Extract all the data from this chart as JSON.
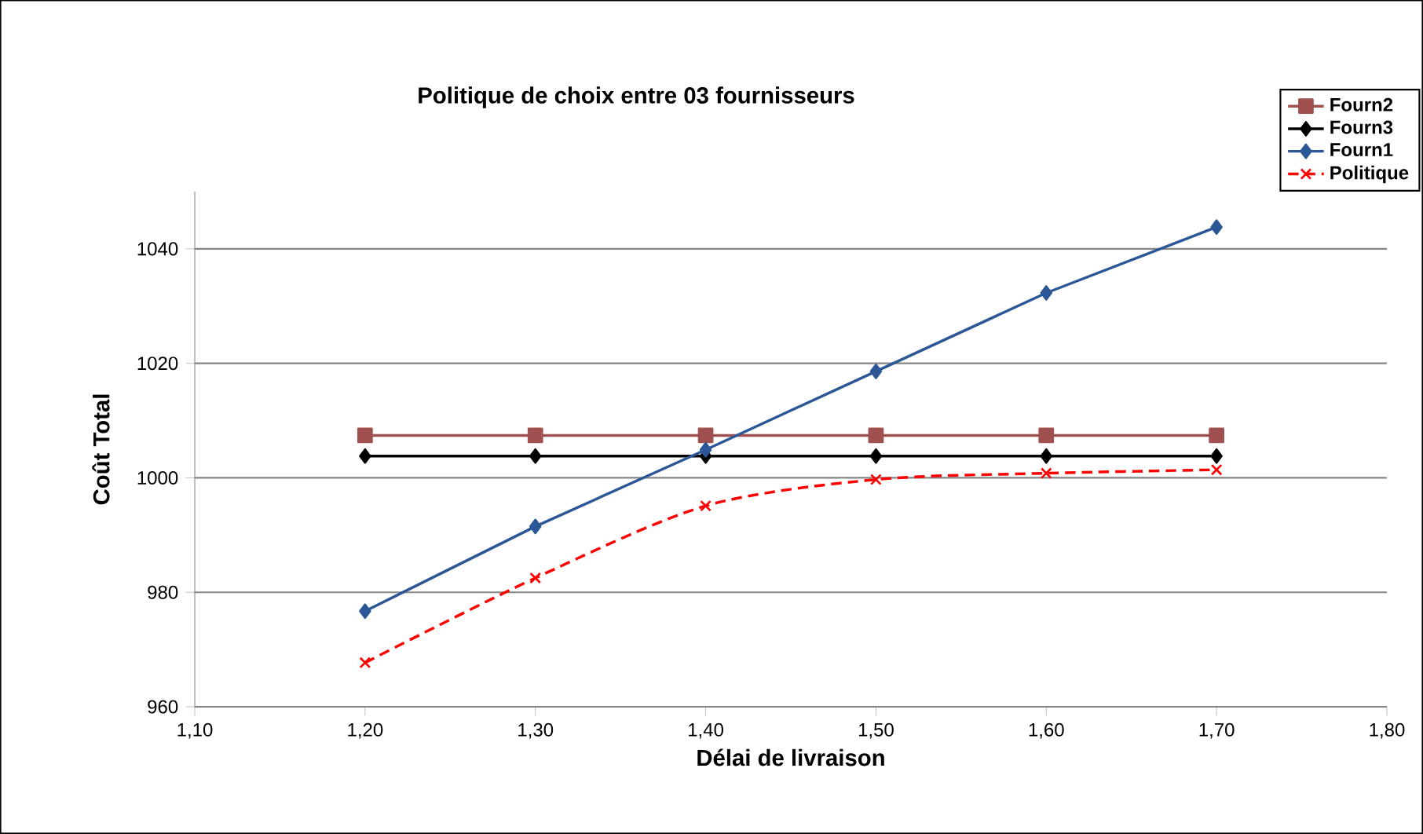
{
  "chart_data": {
    "type": "line",
    "title": "Politique de choix entre  03 fournisseurs",
    "xlabel": "Délai de livraison",
    "ylabel": "Coût Total",
    "x": [
      1.2,
      1.3,
      1.4,
      1.5,
      1.6,
      1.7
    ],
    "series": [
      {
        "name": "Fourn2",
        "color": "#a0504f",
        "marker": "square",
        "line_style": "solid",
        "values": [
          1007.4,
          1007.4,
          1007.4,
          1007.4,
          1007.4,
          1007.4
        ]
      },
      {
        "name": "Fourn3",
        "color": "#000000",
        "marker": "diamond",
        "line_style": "solid",
        "values": [
          1003.8,
          1003.8,
          1003.8,
          1003.8,
          1003.8,
          1003.8
        ]
      },
      {
        "name": "Fourn1",
        "color": "#2c5797",
        "marker": "diamond",
        "line_style": "solid",
        "values": [
          976.7,
          991.5,
          1004.9,
          1018.6,
          1032.3,
          1043.8
        ]
      },
      {
        "name": "Politique",
        "color": "#ff0000",
        "marker": "cross",
        "line_style": "dashed",
        "values": [
          967.7,
          982.5,
          995.1,
          999.7,
          1000.8,
          1001.4
        ]
      }
    ],
    "xlim": [
      1.1,
      1.8
    ],
    "xticks": [
      {
        "value": 1.1,
        "label": "1,10"
      },
      {
        "value": 1.2,
        "label": "1,20"
      },
      {
        "value": 1.3,
        "label": "1,30"
      },
      {
        "value": 1.4,
        "label": "1,40"
      },
      {
        "value": 1.5,
        "label": "1,50"
      },
      {
        "value": 1.6,
        "label": "1,60"
      },
      {
        "value": 1.7,
        "label": "1,70"
      },
      {
        "value": 1.8,
        "label": "1,80"
      }
    ],
    "ylim": [
      960,
      1050
    ],
    "yticks": [
      960,
      980,
      1000,
      1020,
      1040
    ],
    "grid": "y",
    "legend": "top right"
  }
}
